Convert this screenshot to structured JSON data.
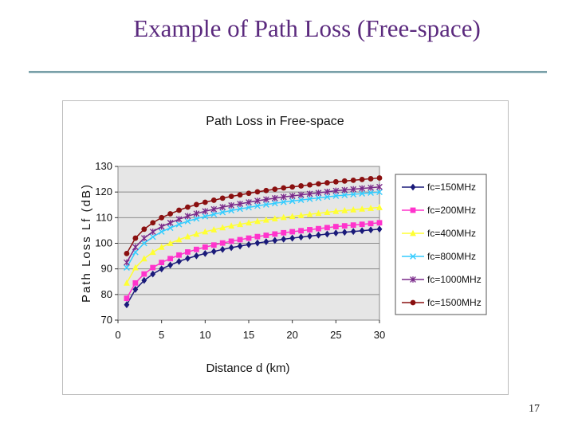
{
  "slide": {
    "title": "Example of Path Loss (Free-space)",
    "page_number": "17"
  },
  "colors": {
    "title": "#5b2a7e",
    "plot_background": "#e6e6e6",
    "series": [
      "#1a1a7a",
      "#ff33cc",
      "#ffff33",
      "#33ccff",
      "#7a2a8a",
      "#8a1010"
    ]
  },
  "chart_data": {
    "type": "line",
    "title": "Path Loss in Free-space",
    "xlabel": "Distance d (km)",
    "ylabel": "Path Loss Lf (dB)",
    "xlim": [
      0,
      30
    ],
    "ylim": [
      70,
      130
    ],
    "xticks": [
      "0",
      "5",
      "10",
      "15",
      "20",
      "25",
      "30"
    ],
    "yticks": [
      "70",
      "80",
      "90",
      "100",
      "110",
      "120",
      "130"
    ],
    "grid": true,
    "legend_position": "right",
    "x": [
      1,
      2,
      3,
      4,
      5,
      6,
      7,
      8,
      9,
      10,
      11,
      12,
      13,
      14,
      15,
      16,
      17,
      18,
      19,
      20,
      21,
      22,
      23,
      24,
      25,
      26,
      27,
      28,
      29,
      30
    ],
    "series": [
      {
        "name": "fc=150MHz",
        "marker": "diamond",
        "values": [
          76.0,
          82.0,
          85.5,
          88.0,
          90.0,
          91.5,
          92.9,
          94.1,
          95.1,
          96.0,
          96.8,
          97.6,
          98.3,
          98.9,
          99.5,
          100.1,
          100.6,
          101.1,
          101.6,
          102.0,
          102.4,
          102.8,
          103.2,
          103.6,
          104.0,
          104.3,
          104.6,
          104.9,
          105.2,
          105.5
        ]
      },
      {
        "name": "fc=200MHz",
        "marker": "square",
        "values": [
          78.5,
          84.5,
          88.0,
          90.5,
          92.5,
          94.0,
          95.4,
          96.6,
          97.6,
          98.5,
          99.3,
          100.1,
          100.8,
          101.4,
          102.0,
          102.6,
          103.1,
          103.6,
          104.1,
          104.5,
          104.9,
          105.3,
          105.7,
          106.1,
          106.5,
          106.8,
          107.1,
          107.4,
          107.7,
          108.0
        ]
      },
      {
        "name": "fc=400MHz",
        "marker": "triangle",
        "values": [
          84.5,
          90.5,
          94.0,
          96.5,
          98.5,
          100.0,
          101.4,
          102.6,
          103.6,
          104.5,
          105.3,
          106.1,
          106.8,
          107.4,
          108.0,
          108.6,
          109.1,
          109.6,
          110.1,
          110.5,
          110.9,
          111.3,
          111.7,
          112.1,
          112.5,
          112.8,
          113.1,
          113.4,
          113.7,
          114.0
        ]
      },
      {
        "name": "fc=800MHz",
        "marker": "x",
        "values": [
          90.5,
          96.5,
          100.0,
          102.5,
          104.5,
          106.0,
          107.4,
          108.6,
          109.6,
          110.5,
          111.3,
          112.1,
          112.8,
          113.4,
          114.0,
          114.6,
          115.1,
          115.6,
          116.1,
          116.5,
          116.9,
          117.3,
          117.7,
          118.1,
          118.5,
          118.8,
          119.1,
          119.4,
          119.7,
          120.0
        ]
      },
      {
        "name": "fc=1000MHz",
        "marker": "star",
        "values": [
          92.5,
          98.5,
          102.0,
          104.5,
          106.5,
          108.0,
          109.4,
          110.6,
          111.6,
          112.5,
          113.3,
          114.1,
          114.8,
          115.4,
          116.0,
          116.6,
          117.1,
          117.6,
          118.1,
          118.5,
          118.9,
          119.3,
          119.7,
          120.1,
          120.5,
          120.8,
          121.1,
          121.4,
          121.7,
          122.0
        ]
      },
      {
        "name": "fc=1500MHz",
        "marker": "circle",
        "values": [
          96.0,
          102.0,
          105.5,
          108.0,
          110.0,
          111.5,
          112.9,
          114.1,
          115.1,
          116.0,
          116.8,
          117.6,
          118.3,
          118.9,
          119.5,
          120.1,
          120.6,
          121.1,
          121.6,
          122.0,
          122.4,
          122.8,
          123.2,
          123.6,
          124.0,
          124.3,
          124.6,
          124.9,
          125.2,
          125.5
        ]
      }
    ]
  }
}
